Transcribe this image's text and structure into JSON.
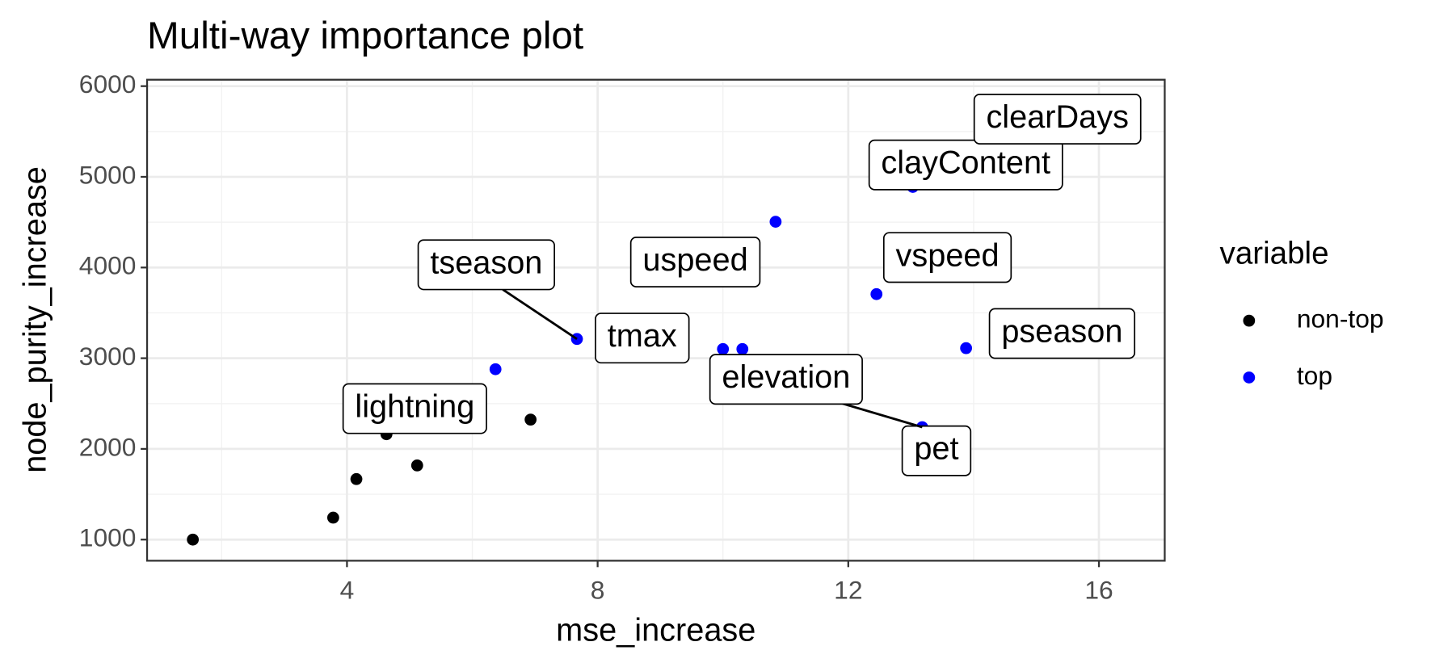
{
  "chart_data": {
    "type": "scatter",
    "title": "Multi-way importance plot",
    "x_label": "mse_increase",
    "y_label": "node_purity_increase",
    "legend_title": "variable",
    "legend_position": "right",
    "grid": true,
    "minor_grid": true,
    "xlim": [
      0.81,
      17.05
    ],
    "xticks": [
      4,
      8,
      12,
      16
    ],
    "ylim": [
      767,
      6071
    ],
    "yticks": [
      1000,
      2000,
      3000,
      4000,
      5000,
      6000
    ],
    "series": [
      {
        "name": "non-top",
        "color": "#000000",
        "x": [
          1.54,
          3.78,
          4.15,
          4.63,
          5.12,
          6.93
        ],
        "values": [
          1000,
          1242,
          1667,
          2162,
          1818,
          2323
        ],
        "labels": [
          null,
          null,
          null,
          "lightning",
          null,
          null
        ]
      },
      {
        "name": "top",
        "color": "#0000ff",
        "x": [
          6.37,
          7.67,
          10.0,
          10.31,
          10.84,
          12.45,
          13.03,
          13.88,
          13.18,
          15.3
        ],
        "values": [
          2879,
          3212,
          3101,
          3101,
          4505,
          3707,
          4889,
          3111,
          2240,
          5500
        ],
        "labels": [
          null,
          "tseason",
          "tmax",
          "pet",
          "uspeed",
          "vspeed",
          "clayContent",
          "pseason",
          "elevation",
          "clearDays"
        ]
      }
    ]
  }
}
